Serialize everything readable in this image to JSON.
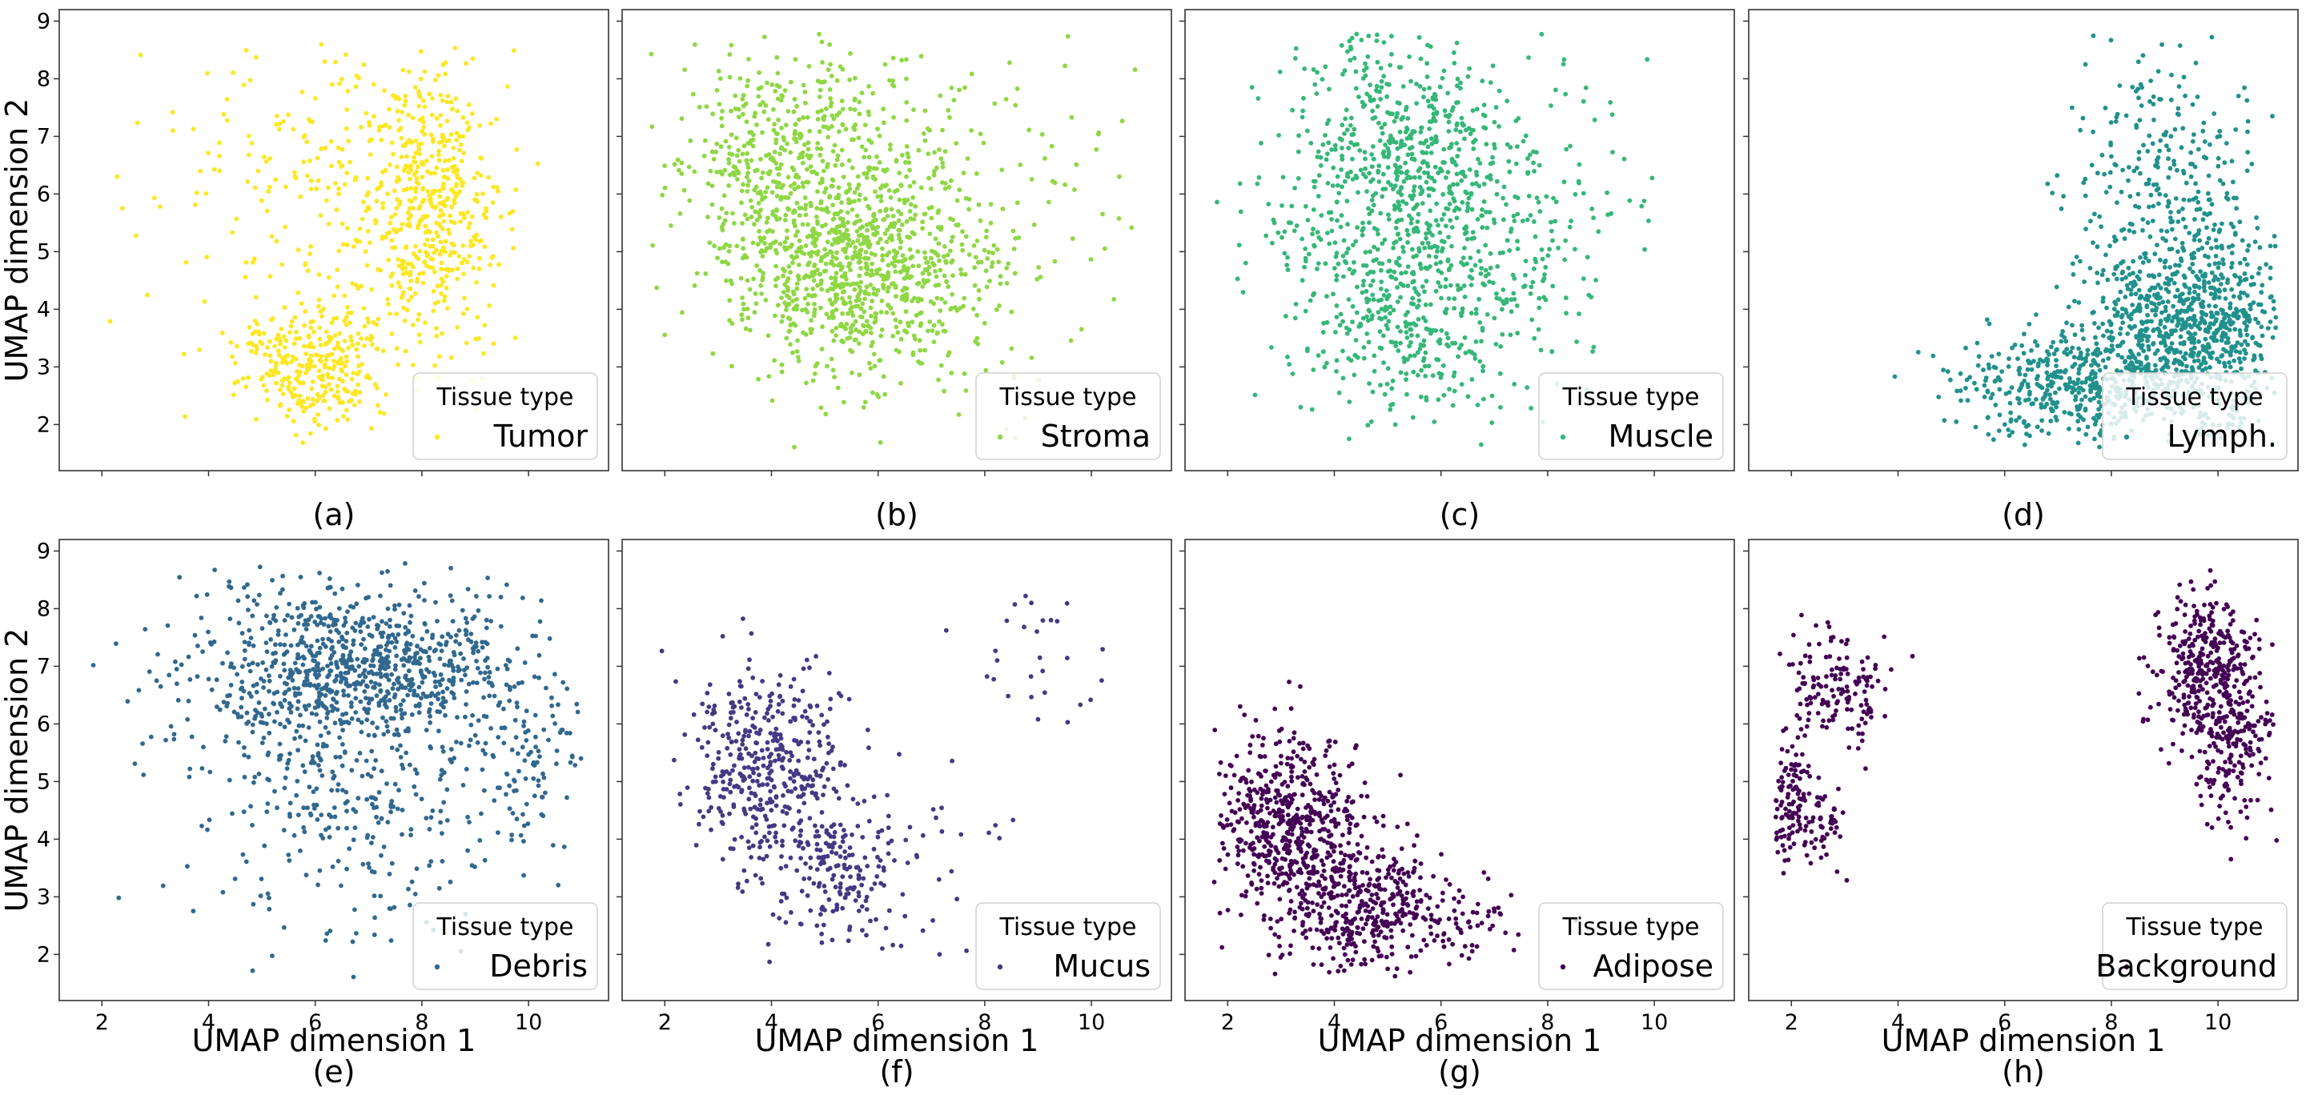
{
  "figure": {
    "ylabel": "UMAP dimension 2",
    "xlabel": "UMAP dimension 1",
    "legend_title": "Tissue type"
  },
  "chart_data": [
    {
      "type": "scatter",
      "panel_label": "(a)",
      "series": [
        {
          "name": "Tumor"
        }
      ],
      "color": "#fde725",
      "xlim": [
        1.2,
        11.5
      ],
      "ylim": [
        1.2,
        9.2
      ],
      "xticks": [
        2,
        4,
        6,
        8,
        10
      ],
      "yticks": [
        2,
        3,
        4,
        5,
        6,
        7,
        8,
        9
      ],
      "show_xtick_labels": false,
      "show_ytick_labels": true,
      "show_xlabel": false,
      "show_ylabel": true,
      "legend_position": "lower-right",
      "n_points": 1000,
      "clusters": [
        {
          "cx": 8.1,
          "cy": 5.7,
          "sx": 0.65,
          "sy": 1.25,
          "w": 0.45
        },
        {
          "cx": 6.0,
          "cy": 3.0,
          "sx": 0.65,
          "sy": 0.6,
          "w": 0.32
        },
        {
          "cx": 6.3,
          "cy": 6.5,
          "sx": 1.6,
          "sy": 1.5,
          "w": 0.23
        }
      ]
    },
    {
      "type": "scatter",
      "panel_label": "(b)",
      "series": [
        {
          "name": "Stroma"
        }
      ],
      "color": "#8fd744",
      "xlim": [
        1.2,
        11.5
      ],
      "ylim": [
        1.2,
        9.2
      ],
      "xticks": [
        2,
        4,
        6,
        8,
        10
      ],
      "yticks": [
        2,
        3,
        4,
        5,
        6,
        7,
        8,
        9
      ],
      "show_xtick_labels": false,
      "show_ytick_labels": false,
      "show_xlabel": false,
      "show_ylabel": false,
      "legend_position": "lower-right",
      "n_points": 1500,
      "clusters": [
        {
          "cx": 5.6,
          "cy": 4.6,
          "sx": 1.1,
          "sy": 0.9,
          "w": 0.5
        },
        {
          "cx": 4.3,
          "cy": 6.7,
          "sx": 1.1,
          "sy": 1.1,
          "w": 0.3
        },
        {
          "cx": 6.5,
          "cy": 5.5,
          "sx": 2.0,
          "sy": 1.6,
          "w": 0.2
        }
      ]
    },
    {
      "type": "scatter",
      "panel_label": "(c)",
      "series": [
        {
          "name": "Muscle"
        }
      ],
      "color": "#35b779",
      "xlim": [
        1.2,
        11.5
      ],
      "ylim": [
        1.2,
        9.2
      ],
      "xticks": [
        2,
        4,
        6,
        8,
        10
      ],
      "yticks": [
        2,
        3,
        4,
        5,
        6,
        7,
        8,
        9
      ],
      "show_xtick_labels": false,
      "show_ytick_labels": false,
      "show_xlabel": false,
      "show_ylabel": false,
      "legend_position": "lower-right",
      "n_points": 1200,
      "clusters": [
        {
          "cx": 5.3,
          "cy": 6.3,
          "sx": 1.2,
          "sy": 1.3,
          "w": 0.55
        },
        {
          "cx": 5.6,
          "cy": 3.8,
          "sx": 1.2,
          "sy": 1.0,
          "w": 0.3
        },
        {
          "cx": 7.2,
          "cy": 5.7,
          "sx": 1.5,
          "sy": 1.3,
          "w": 0.15
        }
      ]
    },
    {
      "type": "scatter",
      "panel_label": "(d)",
      "series": [
        {
          "name": "Lymph."
        }
      ],
      "color": "#21918c",
      "xlim": [
        1.2,
        11.5
      ],
      "ylim": [
        1.2,
        9.2
      ],
      "xticks": [
        2,
        4,
        6,
        8,
        10
      ],
      "yticks": [
        2,
        3,
        4,
        5,
        6,
        7,
        8,
        9
      ],
      "show_xtick_labels": false,
      "show_ytick_labels": false,
      "show_xlabel": false,
      "show_ylabel": false,
      "legend_position": "lower-right",
      "n_points": 1600,
      "clusters": [
        {
          "cx": 9.4,
          "cy": 3.7,
          "sx": 1.0,
          "sy": 0.9,
          "w": 0.6
        },
        {
          "cx": 7.2,
          "cy": 2.7,
          "sx": 1.1,
          "sy": 0.45,
          "w": 0.25
        },
        {
          "cx": 9.0,
          "cy": 6.5,
          "sx": 0.9,
          "sy": 1.0,
          "w": 0.15
        }
      ]
    },
    {
      "type": "scatter",
      "panel_label": "(e)",
      "series": [
        {
          "name": "Debris"
        }
      ],
      "color": "#31688e",
      "xlim": [
        1.2,
        11.5
      ],
      "ylim": [
        1.2,
        9.2
      ],
      "xticks": [
        2,
        4,
        6,
        8,
        10
      ],
      "yticks": [
        2,
        3,
        4,
        5,
        6,
        7,
        8,
        9
      ],
      "show_xtick_labels": true,
      "show_ytick_labels": true,
      "show_xlabel": true,
      "show_ylabel": true,
      "legend_position": "lower-right",
      "n_points": 1300,
      "clusters": [
        {
          "cx": 7.0,
          "cy": 7.0,
          "sx": 1.4,
          "sy": 0.7,
          "w": 0.55
        },
        {
          "cx": 6.5,
          "cy": 4.8,
          "sx": 1.4,
          "sy": 1.2,
          "w": 0.25
        },
        {
          "cx": 4.8,
          "cy": 6.9,
          "sx": 1.2,
          "sy": 0.9,
          "w": 0.1
        },
        {
          "cx": 10.0,
          "cy": 5.5,
          "sx": 0.6,
          "sy": 1.0,
          "w": 0.1
        }
      ]
    },
    {
      "type": "scatter",
      "panel_label": "(f)",
      "series": [
        {
          "name": "Mucus"
        }
      ],
      "color": "#443983",
      "xlim": [
        1.2,
        11.5
      ],
      "ylim": [
        1.2,
        9.2
      ],
      "xticks": [
        2,
        4,
        6,
        8,
        10
      ],
      "yticks": [
        2,
        3,
        4,
        5,
        6,
        7,
        8,
        9
      ],
      "show_xtick_labels": true,
      "show_ytick_labels": false,
      "show_xlabel": true,
      "show_ylabel": false,
      "legend_position": "lower-right",
      "n_points": 650,
      "clusters": [
        {
          "cx": 3.8,
          "cy": 5.3,
          "sx": 0.75,
          "sy": 0.85,
          "w": 0.6
        },
        {
          "cx": 5.2,
          "cy": 3.5,
          "sx": 0.7,
          "sy": 0.7,
          "w": 0.3
        },
        {
          "cx": 9.0,
          "cy": 7.2,
          "sx": 0.7,
          "sy": 0.7,
          "w": 0.05
        },
        {
          "cx": 6.5,
          "cy": 3.5,
          "sx": 1.0,
          "sy": 1.0,
          "w": 0.05
        }
      ]
    },
    {
      "type": "scatter",
      "panel_label": "(g)",
      "series": [
        {
          "name": "Adipose"
        }
      ],
      "color": "#440154",
      "xlim": [
        1.2,
        11.5
      ],
      "ylim": [
        1.2,
        9.2
      ],
      "xticks": [
        2,
        4,
        6,
        8,
        10
      ],
      "yticks": [
        2,
        3,
        4,
        5,
        6,
        7,
        8,
        9
      ],
      "show_xtick_labels": true,
      "show_ytick_labels": false,
      "show_xlabel": true,
      "show_ylabel": false,
      "legend_position": "lower-right",
      "n_points": 1000,
      "clusters": [
        {
          "cx": 3.1,
          "cy": 4.2,
          "sx": 0.7,
          "sy": 0.8,
          "w": 0.55
        },
        {
          "cx": 4.6,
          "cy": 2.8,
          "sx": 0.75,
          "sy": 0.6,
          "w": 0.4
        },
        {
          "cx": 6.5,
          "cy": 2.5,
          "sx": 0.5,
          "sy": 0.5,
          "w": 0.05
        }
      ]
    },
    {
      "type": "scatter",
      "panel_label": "(h)",
      "series": [
        {
          "name": "Background"
        }
      ],
      "color": "#440154",
      "xlim": [
        1.2,
        11.5
      ],
      "ylim": [
        1.2,
        9.2
      ],
      "xticks": [
        2,
        4,
        6,
        8,
        10
      ],
      "yticks": [
        2,
        3,
        4,
        5,
        6,
        7,
        8,
        9
      ],
      "show_xtick_labels": true,
      "show_ytick_labels": false,
      "show_xlabel": true,
      "show_ylabel": false,
      "legend_position": "lower-right",
      "n_points": 850,
      "clusters": [
        {
          "cx": 9.8,
          "cy": 7.0,
          "sx": 0.45,
          "sy": 0.7,
          "w": 0.4
        },
        {
          "cx": 10.3,
          "cy": 5.6,
          "sx": 0.45,
          "sy": 0.75,
          "w": 0.25
        },
        {
          "cx": 1.9,
          "cy": 4.6,
          "sx": 0.25,
          "sy": 0.5,
          "w": 0.15
        },
        {
          "cx": 2.9,
          "cy": 6.6,
          "sx": 0.5,
          "sy": 0.5,
          "w": 0.15
        },
        {
          "cx": 2.6,
          "cy": 4.3,
          "sx": 0.25,
          "sy": 0.3,
          "w": 0.05
        }
      ]
    }
  ]
}
